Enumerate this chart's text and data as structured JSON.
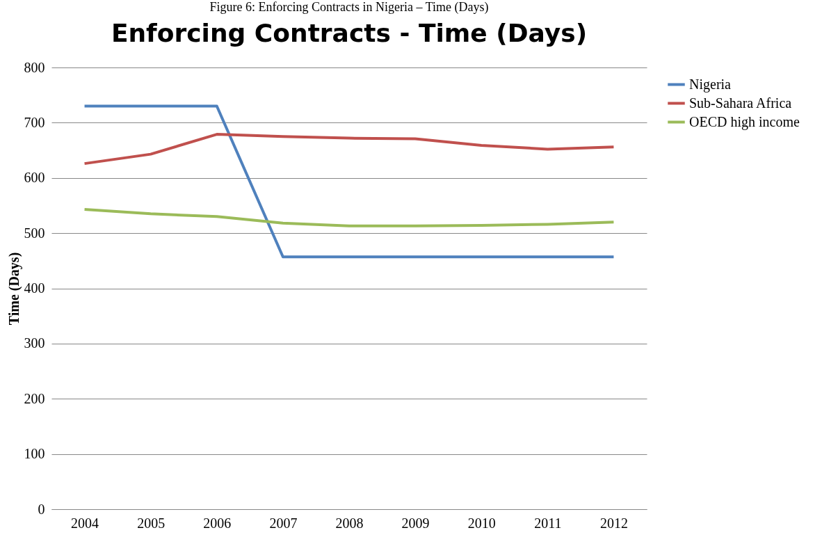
{
  "chart_data": {
    "type": "line",
    "title": "Enforcing Contracts - Time (Days)",
    "ylabel": "Time (Days)",
    "annotations": [
      "Figure 6: Enforcing Contracts in Nigeria – Time (Days)"
    ],
    "categories": [
      "2004",
      "2005",
      "2006",
      "2007",
      "2008",
      "2009",
      "2010",
      "2011",
      "2012"
    ],
    "series": [
      {
        "name": "Nigeria",
        "color": "#4f81bd",
        "values": [
          730,
          730,
          730,
          457,
          457,
          457,
          457,
          457,
          457
        ]
      },
      {
        "name": "Sub-Sahara Africa",
        "color": "#c0504d",
        "values": [
          626,
          643,
          679,
          675,
          672,
          671,
          659,
          652,
          656
        ]
      },
      {
        "name": "OECD high income",
        "color": "#9bbb59",
        "values": [
          543,
          535,
          530,
          518,
          513,
          513,
          514,
          516,
          520
        ]
      }
    ],
    "ylim": [
      0,
      800
    ],
    "yticks": [
      0,
      100,
      200,
      300,
      400,
      500,
      600,
      700,
      800
    ],
    "grid": "y",
    "legend": "right",
    "marker": "none",
    "line_style": "solid"
  }
}
